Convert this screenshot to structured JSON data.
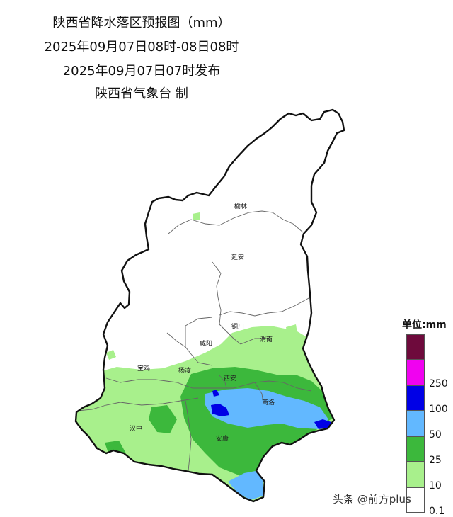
{
  "header": {
    "title": "陕西省降水落区预报图（mm）",
    "period": "2025年09月07日08时-08日08时",
    "issued": "2025年09月07日07时发布",
    "publisher": "陕西省气象台 制"
  },
  "cities": [
    {
      "name": "榆林"
    },
    {
      "name": "延安"
    },
    {
      "name": "铜川"
    },
    {
      "name": "渭南"
    },
    {
      "name": "咸阳"
    },
    {
      "name": "宝鸡"
    },
    {
      "name": "杨凌"
    },
    {
      "name": "西安"
    },
    {
      "name": "商洛"
    },
    {
      "name": "汉中"
    },
    {
      "name": "安康"
    }
  ],
  "legend": {
    "title": "单位:mm",
    "items": [
      {
        "label": "",
        "color": "#6e0a3c"
      },
      {
        "label": "250",
        "color": "#f002f0"
      },
      {
        "label": "100",
        "color": "#0000e6"
      },
      {
        "label": "50",
        "color": "#62b8ff"
      },
      {
        "label": "25",
        "color": "#3cb83c"
      },
      {
        "label": "10",
        "color": "#a8f08c"
      },
      {
        "label": "0.1",
        "color": "#ffffff"
      }
    ]
  },
  "precip_colors": {
    "light": "#a8f08c",
    "moderate": "#3cb83c",
    "heavy": "#62b8ff",
    "rainstorm": "#0000e6"
  },
  "watermark": "头条 @前方plus"
}
